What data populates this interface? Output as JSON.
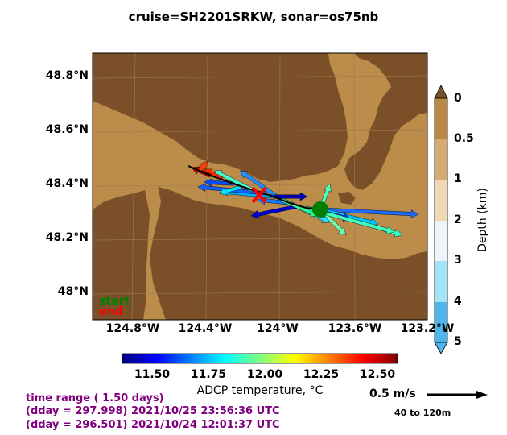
{
  "title": "cruise=SH2201SRKW,   sonar=os75nb",
  "map": {
    "lat_labels": [
      "48.8°N",
      "48.6°N",
      "48.4°N",
      "48.2°N",
      "48°N"
    ],
    "lon_labels": [
      "124.8°W",
      "124.4°W",
      "124°W",
      "123.6°W",
      "123.2°W"
    ],
    "start_label": "start",
    "end_label": "end",
    "colors": {
      "land": "#7b5029",
      "shallow_water": "#bb8c4a",
      "track": "#000000",
      "start_marker": "#008000",
      "end_marker": "#ff0000"
    }
  },
  "depth_colorbar": {
    "label": "Depth (km)",
    "ticks": [
      "0",
      "0.5",
      "1",
      "2",
      "3",
      "4",
      "5"
    ],
    "colors": [
      "#b98847",
      "#d6ab72",
      "#f1d9b6",
      "#eef5fa",
      "#a2e4f6",
      "#4eb6ea"
    ]
  },
  "temp_colorbar": {
    "label": "ADCP temperature, °C",
    "ticks": [
      "11.50",
      "11.75",
      "12.00",
      "12.25",
      "12.50"
    ],
    "range": [
      11.35,
      12.65
    ],
    "colormap": "jet"
  },
  "info": {
    "time_range": "time range ( 1.50 days)",
    "end_line": "(dday = 297.998) 2021/10/25 23:56:36 UTC",
    "start_line": "(dday = 296.501) 2021/10/24 12:01:37 UTC"
  },
  "scale": {
    "label": "0.5 m/s",
    "depth_range": "40 to 120m"
  }
}
